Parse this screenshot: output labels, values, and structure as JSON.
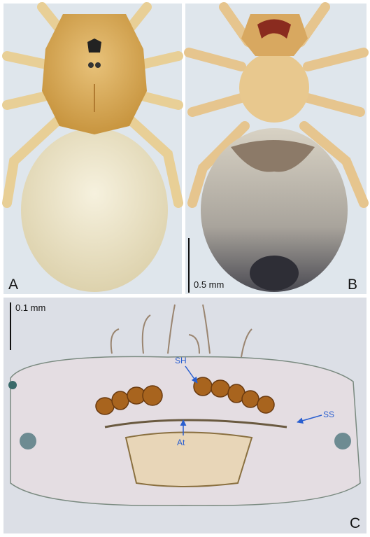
{
  "panels": {
    "a": {
      "label": "A"
    },
    "b": {
      "label": "B",
      "scale_bar": "0.5 mm"
    },
    "c": {
      "label": "C",
      "scale_bar": "0.1 mm",
      "annotations": [
        "SH",
        "SS",
        "At"
      ]
    }
  }
}
